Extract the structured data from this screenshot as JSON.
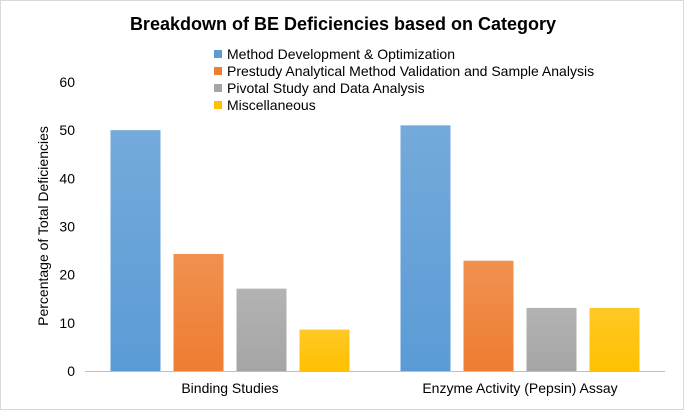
{
  "chart_data": {
    "type": "bar",
    "title": "Breakdown of BE Deficiencies based on Category",
    "xlabel": "",
    "ylabel": "Percentage of Total Deficiencies",
    "ylim": [
      0,
      60
    ],
    "yticks": [
      0,
      10,
      20,
      30,
      40,
      50,
      60
    ],
    "grid": false,
    "legend_position": "top-center",
    "categories": [
      "Binding Studies",
      "Enzyme Activity (Pepsin) Assay"
    ],
    "series": [
      {
        "name": "Method Development & Optimization",
        "color": "#5B9BD5",
        "values": [
          50,
          51
        ]
      },
      {
        "name": "Prestudy Analytical Method Validation and Sample Analysis",
        "color": "#ED7D31",
        "values": [
          24.3,
          22.9
        ]
      },
      {
        "name": "Pivotal Study and Data Analysis",
        "color": "#A5A5A5",
        "values": [
          17.1,
          13.1
        ]
      },
      {
        "name": "Miscellaneous",
        "color": "#FFC000",
        "values": [
          8.6,
          13.1
        ]
      }
    ]
  }
}
